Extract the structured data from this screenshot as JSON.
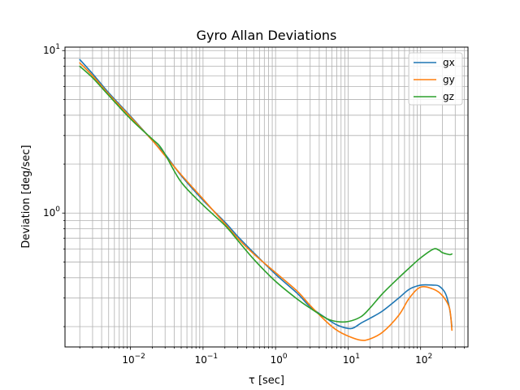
{
  "chart_data": {
    "type": "line",
    "title": "Gyro Allan Deviations",
    "xlabel": "τ [sec]",
    "ylabel": "Deviation [deg/sec]",
    "xscale": "log",
    "yscale": "log",
    "xlim": [
      0.00125,
      450
    ],
    "ylim": [
      0.15,
      10.5
    ],
    "grid": "major and minor",
    "legend_position": "top-right",
    "x_tick_labels": [
      {
        "value": 0.01,
        "base": "10",
        "exp": "−2"
      },
      {
        "value": 0.1,
        "base": "10",
        "exp": "−1"
      },
      {
        "value": 1,
        "base": "10",
        "exp": "0"
      },
      {
        "value": 10,
        "base": "10",
        "exp": "1"
      },
      {
        "value": 100,
        "base": "10",
        "exp": "2"
      }
    ],
    "y_tick_labels": [
      {
        "value": 1,
        "base": "10",
        "exp": "0"
      },
      {
        "value": 10,
        "base": "10",
        "exp": "1"
      }
    ],
    "series": [
      {
        "name": "gx",
        "color": "#1f77b4",
        "points": [
          [
            0.002,
            8.8
          ],
          [
            0.003,
            7.2
          ],
          [
            0.005,
            5.5
          ],
          [
            0.01,
            3.95
          ],
          [
            0.02,
            2.8
          ],
          [
            0.03,
            2.3
          ],
          [
            0.05,
            1.7
          ],
          [
            0.1,
            1.2
          ],
          [
            0.2,
            0.88
          ],
          [
            0.3,
            0.72
          ],
          [
            0.5,
            0.57
          ],
          [
            1,
            0.42
          ],
          [
            2,
            0.32
          ],
          [
            3,
            0.265
          ],
          [
            5,
            0.225
          ],
          [
            7,
            0.205
          ],
          [
            10,
            0.195
          ],
          [
            12,
            0.197
          ],
          [
            15,
            0.21
          ],
          [
            20,
            0.225
          ],
          [
            30,
            0.25
          ],
          [
            50,
            0.3
          ],
          [
            70,
            0.34
          ],
          [
            100,
            0.36
          ],
          [
            150,
            0.36
          ],
          [
            180,
            0.355
          ],
          [
            220,
            0.32
          ],
          [
            250,
            0.26
          ],
          [
            270,
            0.2
          ]
        ]
      },
      {
        "name": "gy",
        "color": "#ff7f0e",
        "points": [
          [
            0.002,
            8.4
          ],
          [
            0.003,
            7.0
          ],
          [
            0.005,
            5.4
          ],
          [
            0.01,
            3.9
          ],
          [
            0.02,
            2.8
          ],
          [
            0.03,
            2.25
          ],
          [
            0.05,
            1.72
          ],
          [
            0.1,
            1.22
          ],
          [
            0.2,
            0.86
          ],
          [
            0.3,
            0.7
          ],
          [
            0.5,
            0.56
          ],
          [
            1,
            0.43
          ],
          [
            2,
            0.33
          ],
          [
            3,
            0.27
          ],
          [
            5,
            0.215
          ],
          [
            7,
            0.19
          ],
          [
            10,
            0.175
          ],
          [
            15,
            0.165
          ],
          [
            20,
            0.168
          ],
          [
            30,
            0.185
          ],
          [
            50,
            0.235
          ],
          [
            70,
            0.3
          ],
          [
            100,
            0.35
          ],
          [
            150,
            0.34
          ],
          [
            200,
            0.31
          ],
          [
            250,
            0.26
          ],
          [
            270,
            0.19
          ]
        ]
      },
      {
        "name": "gz",
        "color": "#2ca02c",
        "points": [
          [
            0.002,
            8.0
          ],
          [
            0.003,
            6.8
          ],
          [
            0.005,
            5.3
          ],
          [
            0.01,
            3.8
          ],
          [
            0.02,
            2.85
          ],
          [
            0.025,
            2.6
          ],
          [
            0.03,
            2.3
          ],
          [
            0.05,
            1.55
          ],
          [
            0.1,
            1.12
          ],
          [
            0.2,
            0.84
          ],
          [
            0.3,
            0.68
          ],
          [
            0.5,
            0.52
          ],
          [
            1,
            0.38
          ],
          [
            2,
            0.295
          ],
          [
            3,
            0.26
          ],
          [
            5,
            0.225
          ],
          [
            7,
            0.215
          ],
          [
            10,
            0.215
          ],
          [
            15,
            0.23
          ],
          [
            20,
            0.26
          ],
          [
            30,
            0.32
          ],
          [
            50,
            0.4
          ],
          [
            70,
            0.46
          ],
          [
            100,
            0.53
          ],
          [
            150,
            0.6
          ],
          [
            180,
            0.59
          ],
          [
            200,
            0.57
          ],
          [
            250,
            0.555
          ],
          [
            270,
            0.56
          ]
        ]
      }
    ]
  }
}
